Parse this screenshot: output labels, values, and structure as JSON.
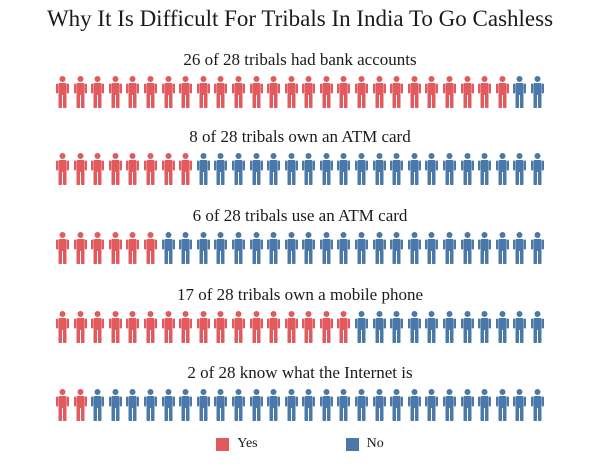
{
  "chart_data": {
    "type": "pictogram",
    "title": "Why It Is Difficult For Tribals In India To Go Cashless",
    "total": 28,
    "rows": [
      {
        "label": "26 of 28 tribals had bank accounts",
        "yes": 26
      },
      {
        "label": "8 of 28 tribals own an ATM card",
        "yes": 8
      },
      {
        "label": "6 of 28 tribals use an ATM card",
        "yes": 6
      },
      {
        "label": "17 of 28 tribals own a mobile phone",
        "yes": 17
      },
      {
        "label": "2 of 28 know what the Internet is",
        "yes": 2
      }
    ],
    "legend": [
      {
        "label": "Yes",
        "color": "#e05a5e"
      },
      {
        "label": "No",
        "color": "#4a78a8"
      }
    ],
    "legend_position": "bottom-center"
  }
}
